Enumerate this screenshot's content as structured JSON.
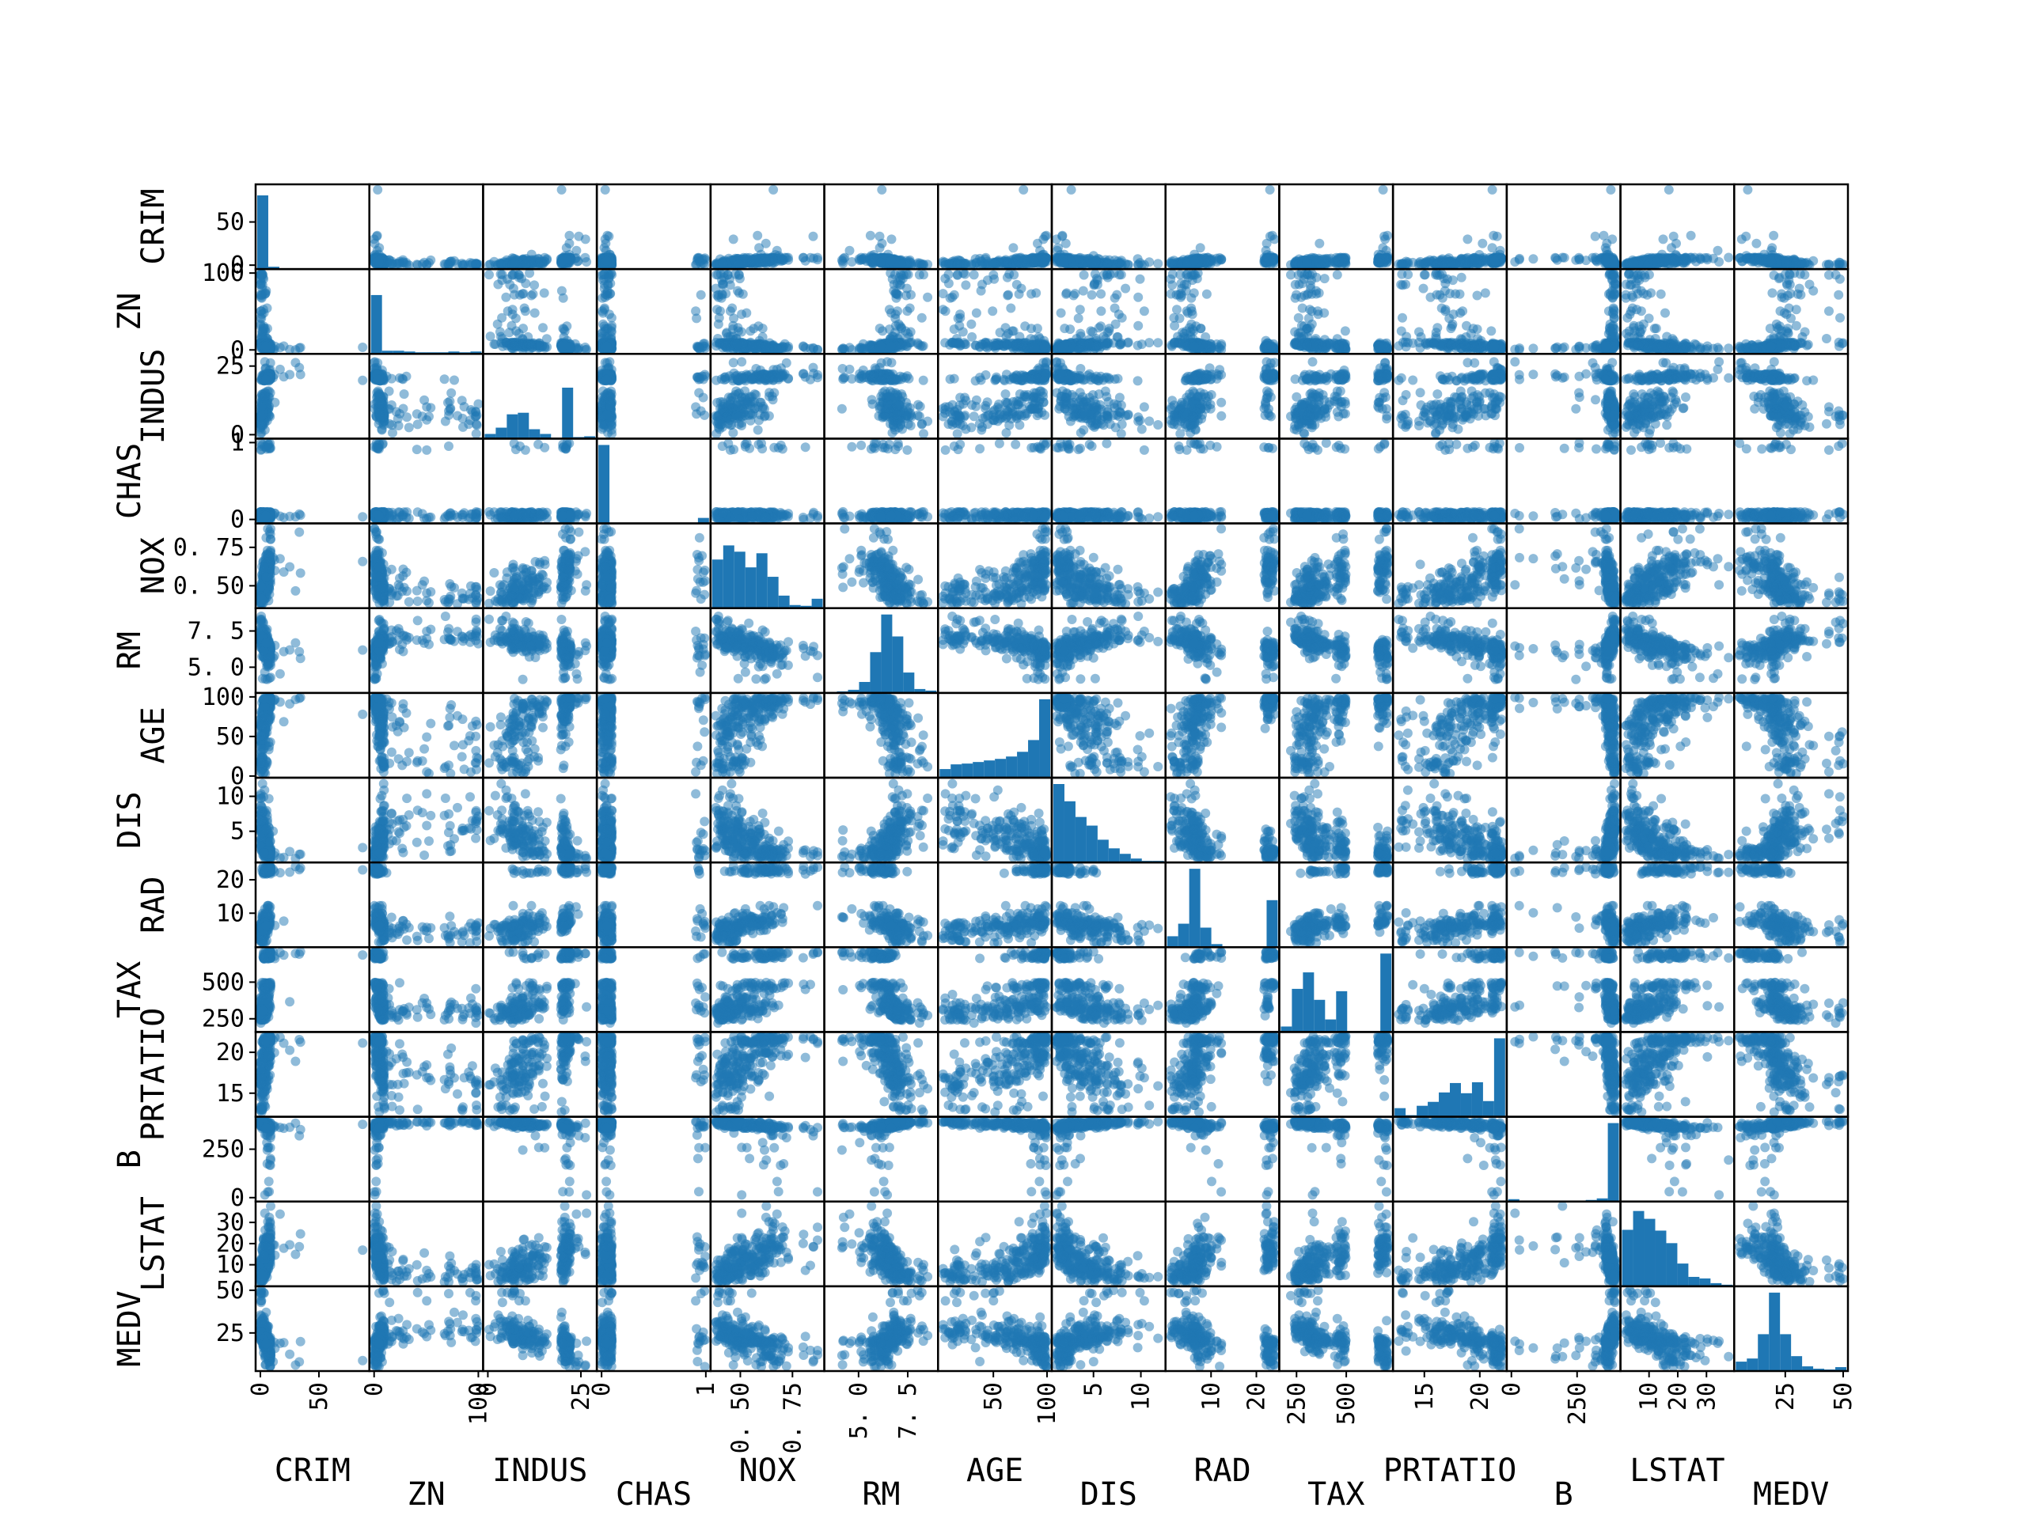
{
  "chart_data": {
    "type": "scatter",
    "subtype": "scatter_matrix",
    "diagonal": "hist",
    "color": "#1f77b4",
    "point_alpha": 0.5,
    "variables": [
      "CRIM",
      "ZN",
      "INDUS",
      "CHAS",
      "NOX",
      "RM",
      "AGE",
      "DIS",
      "RAD",
      "TAX",
      "PRTATIO",
      "B",
      "LSTAT",
      "MEDV"
    ],
    "ranges": {
      "CRIM": [
        0,
        89
      ],
      "ZN": [
        0,
        100
      ],
      "INDUS": [
        0,
        28
      ],
      "CHAS": [
        0,
        1
      ],
      "NOX": [
        0.38,
        0.88
      ],
      "RM": [
        3.5,
        8.8
      ],
      "AGE": [
        2.9,
        100
      ],
      "DIS": [
        1.1,
        12.1
      ],
      "RAD": [
        1,
        24
      ],
      "TAX": [
        187,
        711
      ],
      "PRTATIO": [
        12.6,
        22
      ],
      "B": [
        0.3,
        397
      ],
      "LSTAT": [
        1.7,
        38
      ],
      "MEDV": [
        5,
        50
      ]
    },
    "x_ticks": {
      "CRIM": [
        0,
        50
      ],
      "ZN": [
        0,
        100
      ],
      "INDUS": [
        0,
        25
      ],
      "CHAS": [
        0,
        1
      ],
      "NOX": [
        0.5,
        0.75
      ],
      "RM": [
        5.0,
        7.5
      ],
      "AGE": [
        50,
        100
      ],
      "DIS": [
        5,
        10
      ],
      "RAD": [
        10,
        20
      ],
      "TAX": [
        250,
        500
      ],
      "PRTATIO": [
        15,
        20
      ],
      "B": [
        0,
        250
      ],
      "LSTAT": [
        10,
        20,
        30
      ],
      "MEDV": [
        25,
        50
      ]
    },
    "x_tick_labels": {
      "CRIM": [
        "0",
        "50"
      ],
      "ZN": [
        "0",
        "100"
      ],
      "INDUS": [
        "0",
        "25"
      ],
      "CHAS": [
        "0",
        "1"
      ],
      "NOX": [
        "0. 50",
        "0. 75"
      ],
      "RM": [
        "5. 0",
        "7. 5"
      ],
      "AGE": [
        "50",
        "100"
      ],
      "DIS": [
        "5",
        "10"
      ],
      "RAD": [
        "10",
        "20"
      ],
      "TAX": [
        "250",
        "500"
      ],
      "PRTATIO": [
        "15",
        "20"
      ],
      "B": [
        "0",
        "250"
      ],
      "LSTAT": [
        "10",
        "20",
        "30"
      ],
      "MEDV": [
        "25",
        "50"
      ]
    },
    "y_ticks": {
      "CRIM": [
        0,
        50
      ],
      "ZN": [
        0,
        100
      ],
      "INDUS": [
        0,
        25
      ],
      "CHAS": [
        0,
        1
      ],
      "NOX": [
        0.5,
        0.75
      ],
      "RM": [
        5.0,
        7.5
      ],
      "AGE": [
        0,
        50,
        100
      ],
      "DIS": [
        5,
        10
      ],
      "RAD": [
        10,
        20
      ],
      "TAX": [
        250,
        500
      ],
      "PRTATIO": [
        15,
        20
      ],
      "B": [
        0,
        250
      ],
      "LSTAT": [
        10,
        20,
        30
      ],
      "MEDV": [
        25,
        50
      ]
    },
    "y_tick_labels": {
      "CRIM": [
        "0",
        "50"
      ],
      "ZN": [
        "0",
        "100"
      ],
      "INDUS": [
        "0",
        "25"
      ],
      "CHAS": [
        "0",
        "1"
      ],
      "NOX": [
        "0. 50",
        "0. 75"
      ],
      "RM": [
        "5. 0",
        "7. 5"
      ],
      "AGE": [
        "0",
        "50",
        "100"
      ],
      "DIS": [
        "5",
        "10"
      ],
      "RAD": [
        "10",
        "20"
      ],
      "TAX": [
        "250",
        "500"
      ],
      "PRTATIO": [
        "15",
        "20"
      ],
      "B": [
        "0",
        "250"
      ],
      "LSTAT": [
        "10",
        "20",
        "30"
      ],
      "MEDV": [
        "25",
        "50"
      ]
    },
    "histograms": {
      "CRIM": [
        0.94,
        0.03,
        0.01,
        0.01,
        0.0,
        0.0,
        0.0,
        0.0,
        0.0,
        0.01
      ],
      "ZN": [
        0.75,
        0.04,
        0.04,
        0.03,
        0.02,
        0.02,
        0.02,
        0.03,
        0.02,
        0.03
      ],
      "INDUS": [
        0.06,
        0.14,
        0.31,
        0.33,
        0.12,
        0.06,
        0.0,
        0.65,
        0.02,
        0.03
      ],
      "CHAS": [
        1.0,
        0.0,
        0.0,
        0.0,
        0.0,
        0.0,
        0.0,
        0.0,
        0.0,
        0.07
      ],
      "NOX": [
        0.62,
        0.8,
        0.72,
        0.52,
        0.7,
        0.4,
        0.16,
        0.04,
        0.03,
        0.12
      ],
      "RM": [
        0.01,
        0.02,
        0.04,
        0.14,
        0.52,
        1.0,
        0.72,
        0.26,
        0.05,
        0.03
      ],
      "AGE": [
        0.11,
        0.17,
        0.18,
        0.2,
        0.22,
        0.24,
        0.27,
        0.33,
        0.48,
        1.0
      ],
      "DIS": [
        1.0,
        0.78,
        0.58,
        0.47,
        0.29,
        0.18,
        0.11,
        0.05,
        0.02,
        0.02
      ],
      "RAD": [
        0.14,
        0.3,
        1.0,
        0.25,
        0.04,
        0.0,
        0.0,
        0.0,
        0.0,
        0.6
      ],
      "TAX": [
        0.07,
        0.55,
        0.76,
        0.41,
        0.16,
        0.52,
        0.0,
        0.0,
        0.0,
        1.0
      ],
      "PRTATIO": [
        0.11,
        0.02,
        0.14,
        0.19,
        0.31,
        0.43,
        0.3,
        0.44,
        0.2,
        1.0
      ],
      "B": [
        0.03,
        0.0,
        0.01,
        0.0,
        0.01,
        0.01,
        0.01,
        0.02,
        0.04,
        1.0
      ],
      "LSTAT": [
        0.72,
        0.96,
        0.86,
        0.71,
        0.55,
        0.29,
        0.12,
        0.1,
        0.04,
        0.02
      ],
      "MEDV": [
        0.12,
        0.16,
        0.47,
        1.0,
        0.47,
        0.19,
        0.06,
        0.03,
        0.02,
        0.05
      ]
    }
  }
}
